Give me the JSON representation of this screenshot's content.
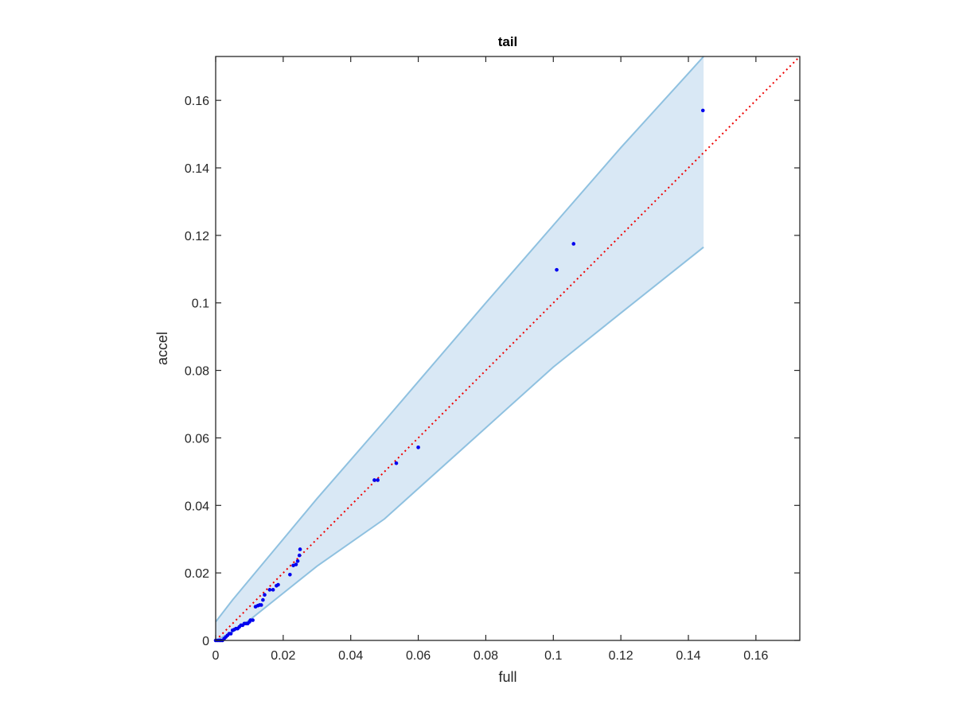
{
  "chart_data": {
    "type": "scatter",
    "title": "tail",
    "xlabel": "full",
    "ylabel": "accel",
    "xlim": [
      0,
      0.173
    ],
    "ylim": [
      0,
      0.173
    ],
    "xticks": [
      0,
      0.02,
      0.04,
      0.06,
      0.08,
      0.1,
      0.12,
      0.14,
      0.16
    ],
    "xtick_labels": [
      "0",
      "0.02",
      "0.04",
      "0.06",
      "0.08",
      "0.1",
      "0.12",
      "0.14",
      "0.16"
    ],
    "yticks": [
      0,
      0.02,
      0.04,
      0.06,
      0.08,
      0.1,
      0.12,
      0.14,
      0.16
    ],
    "ytick_labels": [
      "0",
      "0.02",
      "0.04",
      "0.06",
      "0.08",
      "0.1",
      "0.12",
      "0.14",
      "0.16"
    ],
    "grid": false,
    "colors": {
      "points": "#0000ee",
      "reference_line": "#ee0000",
      "band_fill": "#d9e8f5",
      "band_edge": "#8fc1e0",
      "axes": "#262626"
    },
    "band": {
      "upper": [
        [
          0,
          0.0055
        ],
        [
          0.005,
          0.012
        ],
        [
          0.01,
          0.018
        ],
        [
          0.02,
          0.03
        ],
        [
          0.03,
          0.042
        ],
        [
          0.05,
          0.065
        ],
        [
          0.08,
          0.1
        ],
        [
          0.1,
          0.123
        ],
        [
          0.12,
          0.146
        ],
        [
          0.14,
          0.168
        ],
        [
          0.1445,
          0.173
        ],
        [
          0.1445,
          0.173
        ]
      ],
      "lower": [
        [
          0,
          0.0
        ],
        [
          0.005,
          0.0025
        ],
        [
          0.01,
          0.006
        ],
        [
          0.02,
          0.014
        ],
        [
          0.03,
          0.022
        ],
        [
          0.05,
          0.036
        ],
        [
          0.08,
          0.063
        ],
        [
          0.1,
          0.081
        ],
        [
          0.12,
          0.097
        ],
        [
          0.1445,
          0.1165
        ]
      ]
    },
    "reference_line": {
      "x": [
        0,
        0.173
      ],
      "y": [
        0,
        0.173
      ],
      "style": "dotted"
    },
    "points": {
      "x": [
        0,
        0.0005,
        0.001,
        0.0015,
        0.002,
        0.0025,
        0.003,
        0.0035,
        0.004,
        0.0045,
        0.005,
        0.0055,
        0.006,
        0.0065,
        0.007,
        0.0075,
        0.008,
        0.0085,
        0.009,
        0.0095,
        0.01,
        0.0103,
        0.011,
        0.0118,
        0.0125,
        0.013,
        0.0135,
        0.014,
        0.0145,
        0.016,
        0.017,
        0.018,
        0.0185,
        0.022,
        0.023,
        0.0238,
        0.0243,
        0.0248,
        0.025,
        0.047,
        0.048,
        0.0535,
        0.06,
        0.101,
        0.106,
        0.1443
      ],
      "y": [
        0,
        0,
        0,
        0,
        0,
        0.0005,
        0.001,
        0.0015,
        0.002,
        0.002,
        0.003,
        0.0032,
        0.0035,
        0.0035,
        0.004,
        0.0045,
        0.0045,
        0.005,
        0.005,
        0.005,
        0.0055,
        0.006,
        0.006,
        0.01,
        0.0103,
        0.0105,
        0.0105,
        0.012,
        0.0135,
        0.015,
        0.015,
        0.0162,
        0.0165,
        0.0195,
        0.0222,
        0.0225,
        0.0235,
        0.0252,
        0.027,
        0.0475,
        0.0475,
        0.0525,
        0.0572,
        0.1098,
        0.1175,
        0.157
      ]
    }
  }
}
